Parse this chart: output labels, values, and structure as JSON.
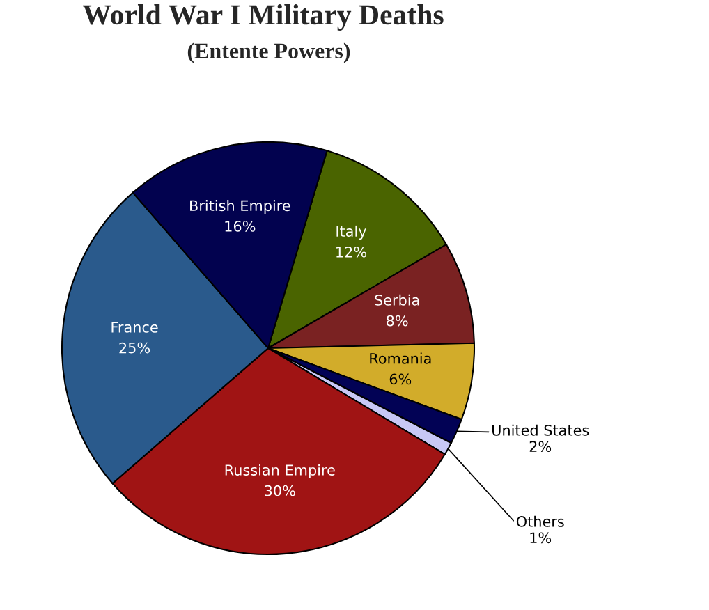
{
  "chart_data": {
    "type": "pie",
    "title": "World War I Military Deaths",
    "subtitle": "(Entente Powers)",
    "categories": [
      "Italy",
      "Serbia",
      "Romania",
      "United States",
      "Others",
      "Russian Empire",
      "France",
      "British Empire"
    ],
    "values": [
      12,
      8,
      6,
      2,
      1,
      30,
      25,
      16
    ],
    "value_labels": [
      "12%",
      "8%",
      "6%",
      "2%",
      "1%",
      "30%",
      "25%",
      "16%"
    ],
    "colors": [
      "#4a6400",
      "#7a2222",
      "#d2ac2a",
      "#020255",
      "#c8c8f5",
      "#a01414",
      "#2a5a8c",
      "#02024f"
    ]
  }
}
